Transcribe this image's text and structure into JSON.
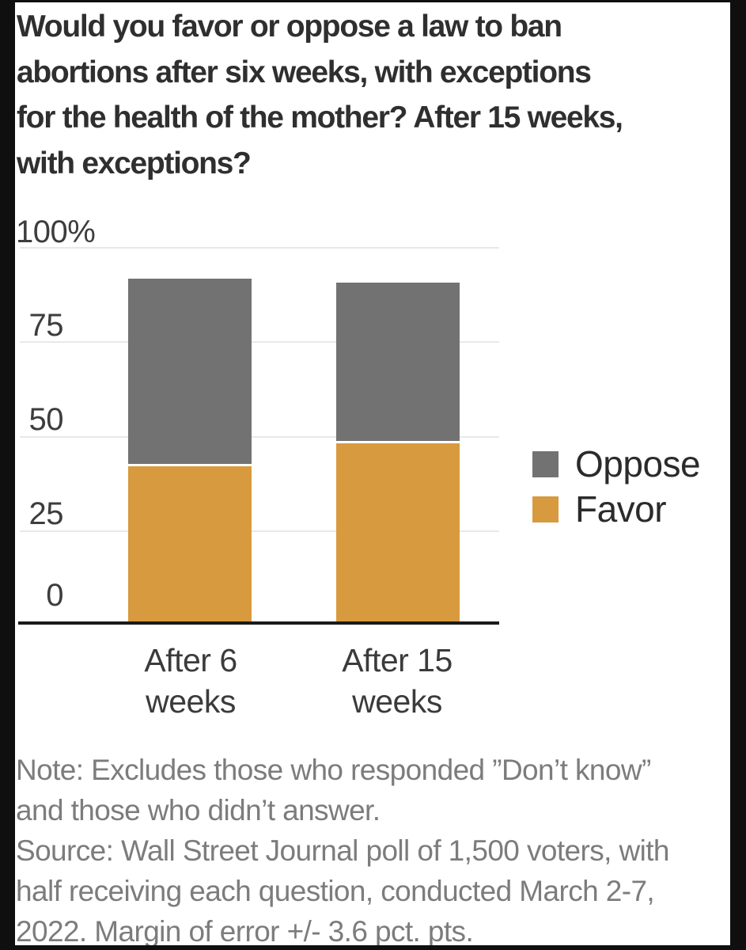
{
  "title": {
    "lines": [
      "Would you favor or oppose a law to ban",
      "abortions after six weeks, with exceptions",
      "for the health of the mother? After 15 weeks,",
      "with exceptions?"
    ]
  },
  "chart_data": {
    "type": "bar",
    "stacked": true,
    "categories": [
      "After 6 weeks",
      "After 15 weeks"
    ],
    "categories_lines": [
      [
        "After 6",
        "weeks"
      ],
      [
        "After 15",
        "weeks"
      ]
    ],
    "series": [
      {
        "name": "Favor",
        "color": "#d89a3e",
        "values": [
          42,
          48
        ]
      },
      {
        "name": "Oppose",
        "color": "#727272",
        "values": [
          49,
          42
        ]
      }
    ],
    "stack_order_bottom_to_top": [
      "Favor",
      "Oppose"
    ],
    "unit": "%",
    "ylim": [
      0,
      100
    ],
    "yticks": [
      "100%",
      "75",
      "50",
      "25",
      "0"
    ],
    "grid": true,
    "legend_position": "right",
    "legend": [
      "Oppose",
      "Favor"
    ],
    "colors": {
      "favor": "#d89a3e",
      "oppose": "#727272",
      "gridline": "#e8e8e8",
      "axis": "#1a1a1a"
    }
  },
  "note": {
    "lines": [
      "Note: Excludes those who responded ”Don’t know”",
      "and those who didn’t answer."
    ]
  },
  "source": {
    "lines": [
      "Source: Wall Street Journal poll of 1,500 voters, with",
      "half receiving each question, conducted March 2-7,",
      "2022. Margin of error +/- 3.6 pct. pts."
    ]
  }
}
